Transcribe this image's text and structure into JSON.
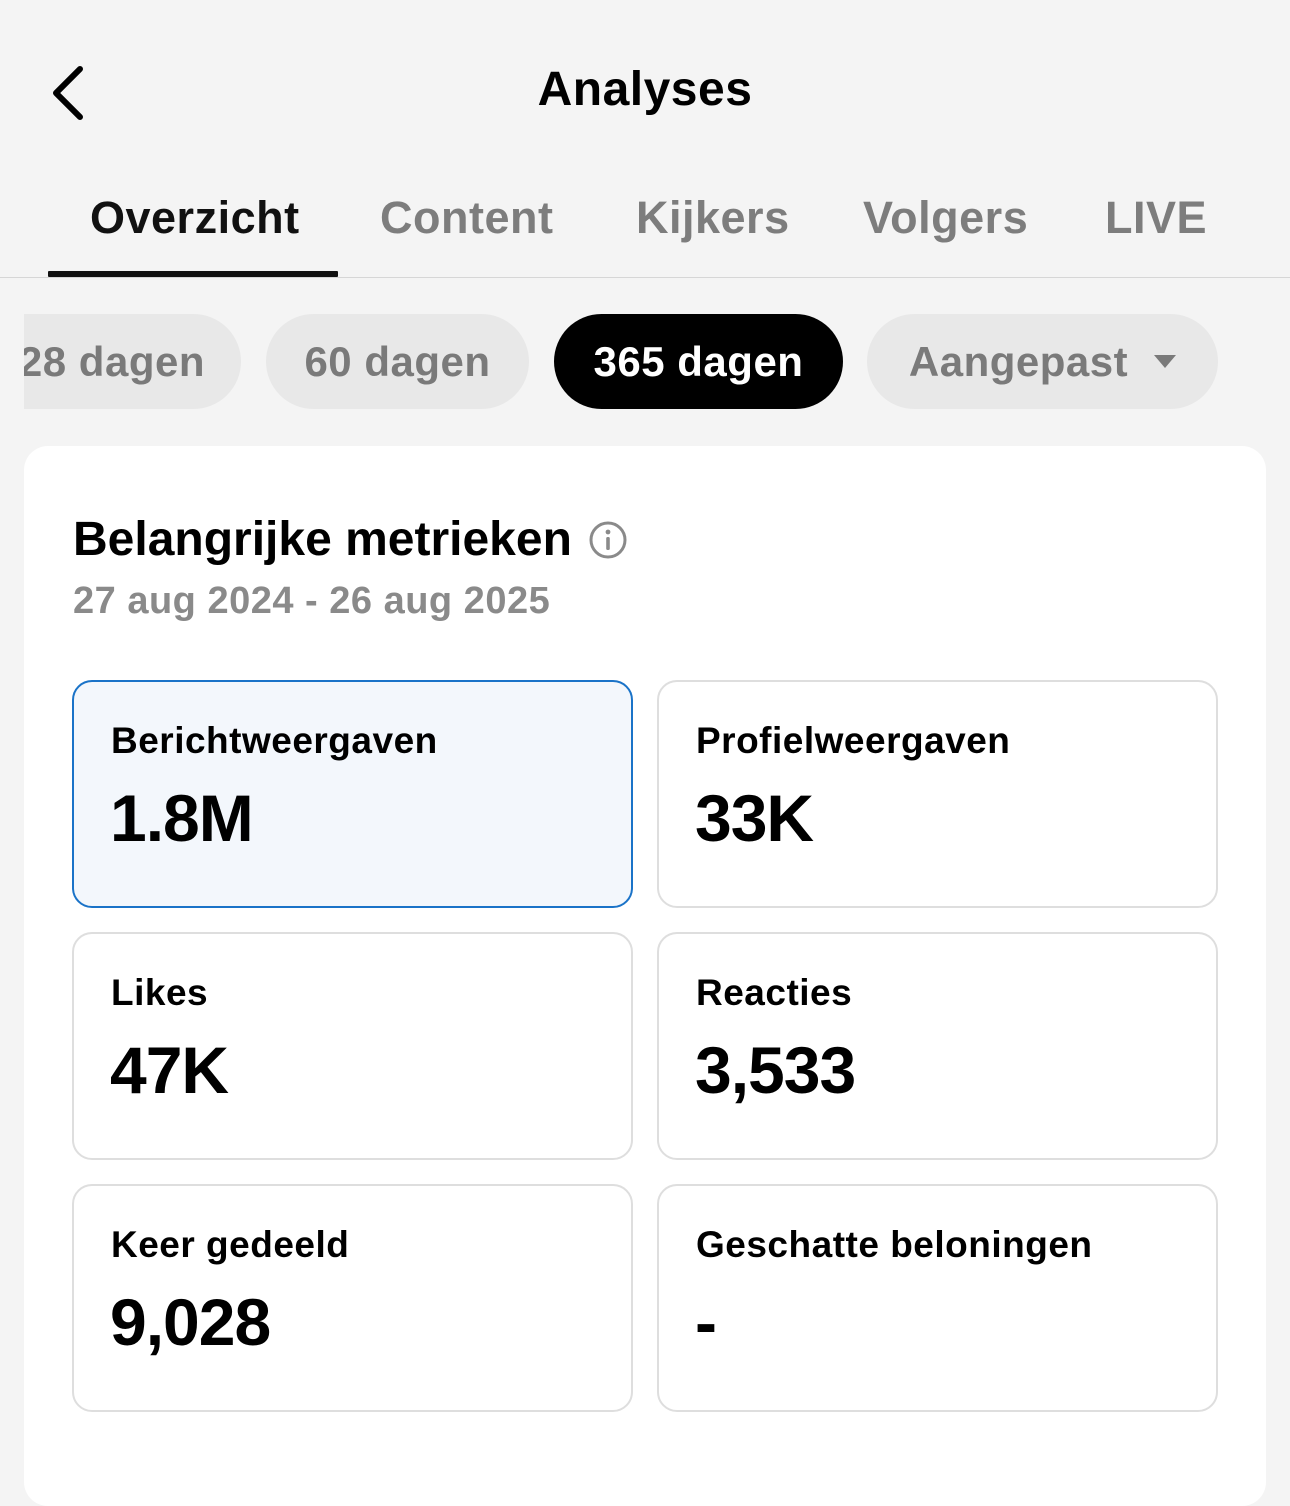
{
  "header": {
    "title": "Analyses"
  },
  "tabs": [
    {
      "label": "Overzicht",
      "active": true
    },
    {
      "label": "Content"
    },
    {
      "label": "Kijkers"
    },
    {
      "label": "Volgers"
    },
    {
      "label": "LIVE"
    }
  ],
  "filters": [
    {
      "label": "28 dagen"
    },
    {
      "label": "60 dagen"
    },
    {
      "label": "365 dagen",
      "active": true
    },
    {
      "label": "Aangepast",
      "icon": "caret-down-icon"
    }
  ],
  "metrics_section": {
    "title": "Belangrijke metrieken",
    "date_range": "27 aug 2024 - 26 aug 2025",
    "metrics": [
      {
        "label": "Berichtweergaven",
        "value": "1.8M",
        "selected": true
      },
      {
        "label": "Profielweergaven",
        "value": "33K"
      },
      {
        "label": "Likes",
        "value": "47K"
      },
      {
        "label": "Reacties",
        "value": "3,533"
      },
      {
        "label": "Keer gedeeld",
        "value": "9,028"
      },
      {
        "label": "Geschatte beloningen",
        "value": "-"
      }
    ]
  },
  "colors": {
    "background": "#f4f4f4",
    "selected_border": "#1a73c8",
    "selected_fill": "#f3f7fc",
    "active_chip": "#000000"
  }
}
